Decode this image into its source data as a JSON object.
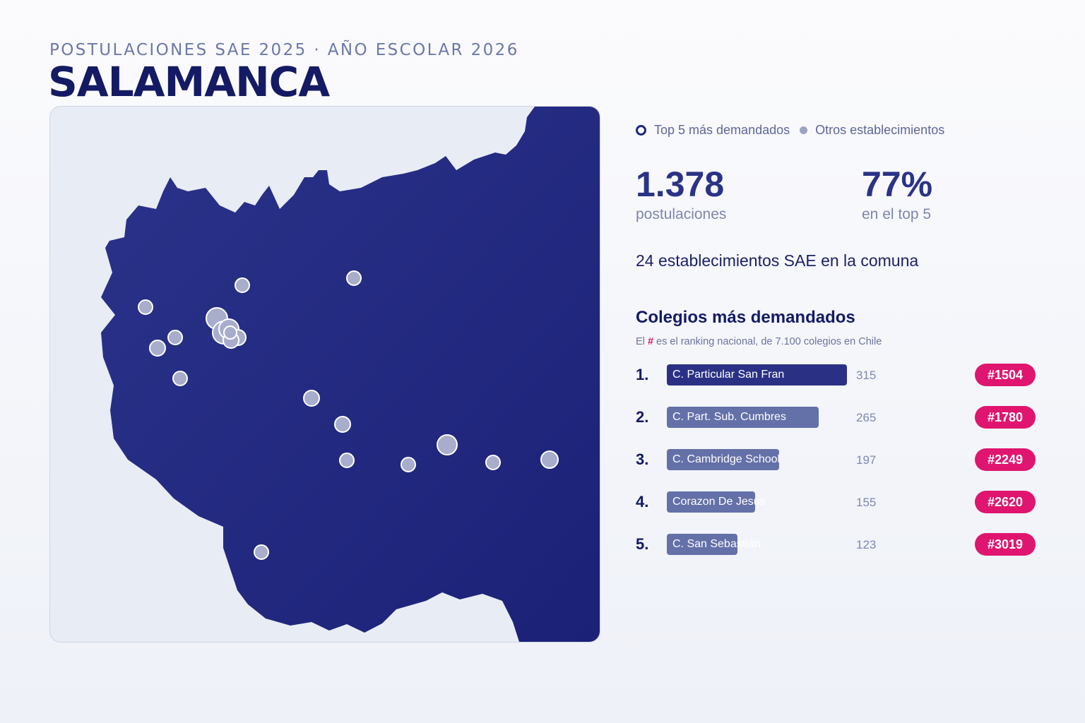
{
  "header": {
    "subtitle": "POSTULACIONES SAE 2025 · AÑO ESCOLAR 2026",
    "title": "SALAMANCA"
  },
  "legend": {
    "top5_label": "Top 5 más demandados",
    "others_label": "Otros establecimientos"
  },
  "stats": {
    "postulaciones_value": "1.378",
    "postulaciones_label": "postulaciones",
    "top5_share_value": "77%",
    "top5_share_label": "en el top 5",
    "establecimientos_text": "24 establecimientos SAE en la comuna"
  },
  "ranking": {
    "title": "Colegios más demandados",
    "note_prefix": "El",
    "note_hash": "#",
    "note_suffix": "es el ranking nacional, de 7.100 colegios en Chile",
    "max_value": 315,
    "items": [
      {
        "rank": "1.",
        "name": "C. Particular San Fran",
        "value": 315,
        "national_rank": "#1504"
      },
      {
        "rank": "2.",
        "name": "C. Part. Sub. Cumbres",
        "value": 265,
        "national_rank": "#1780"
      },
      {
        "rank": "3.",
        "name": "C. Cambridge School",
        "value": 197,
        "national_rank": "#2249"
      },
      {
        "rank": "4.",
        "name": "Corazon De Jesus",
        "value": 155,
        "national_rank": "#2620"
      },
      {
        "rank": "5.",
        "name": "C. San Sebastián",
        "value": 123,
        "national_rank": "#3019"
      }
    ]
  },
  "colors": {
    "region_fill": "#232a7f",
    "background": "#e8ecf5",
    "accent": "#e0156f",
    "point_fill": "#a8adcc"
  }
}
